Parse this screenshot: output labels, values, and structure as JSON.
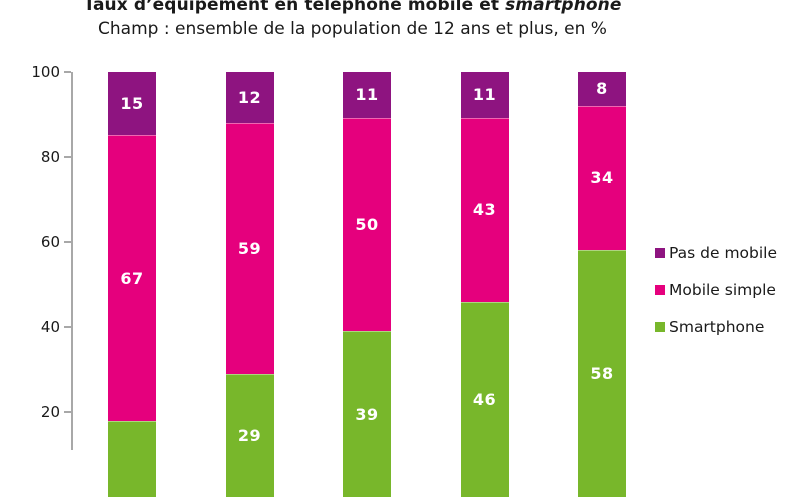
{
  "header": {
    "title_regular": "Taux d’équipement en téléphone mobile et ",
    "title_italic": "smartphone",
    "subtitle": "Champ : ensemble de la population de 12 ans et plus, en %"
  },
  "colors": {
    "pas_de_mobile": "#8E1480",
    "mobile_simple": "#E5007D",
    "smartphone": "#78B72B",
    "axis": "#A8A8A8",
    "text": "#1A1A1A",
    "bar_label": "#FFFFFF"
  },
  "legend": {
    "items": [
      {
        "label": "Pas de mobile",
        "color": "#8E1480"
      },
      {
        "label": "Mobile simple",
        "color": "#E5007D"
      },
      {
        "label": "Smartphone",
        "color": "#78B72B"
      }
    ]
  },
  "chart_data": {
    "type": "bar",
    "stacked": true,
    "unit": "%",
    "title": "Taux d’équipement en téléphone mobile et smartphone",
    "subtitle": "Champ : ensemble de la population de 12 ans et plus, en %",
    "categories": [
      "",
      "",
      "",
      "",
      ""
    ],
    "categories_visible": false,
    "series": [
      {
        "name": "Smartphone",
        "color": "#78B72B",
        "values": [
          18,
          29,
          39,
          46,
          58
        ],
        "label_visible": [
          false,
          true,
          true,
          true,
          true
        ]
      },
      {
        "name": "Mobile simple",
        "color": "#E5007D",
        "values": [
          67,
          59,
          50,
          43,
          34
        ],
        "label_visible": [
          true,
          true,
          true,
          true,
          true
        ]
      },
      {
        "name": "Pas de mobile",
        "color": "#8E1480",
        "values": [
          15,
          12,
          11,
          11,
          8
        ],
        "label_visible": [
          true,
          true,
          true,
          true,
          true
        ]
      }
    ],
    "stack_order_bottom_to_top": [
      "Smartphone",
      "Mobile simple",
      "Pas de mobile"
    ],
    "ylim": [
      0,
      100
    ],
    "y_ticks": [
      20,
      40,
      60,
      80,
      100
    ],
    "grid": false,
    "legend_position": "right",
    "layout_note": "bottom of plot (zero line and category axis labels) is cropped below the visible area"
  }
}
